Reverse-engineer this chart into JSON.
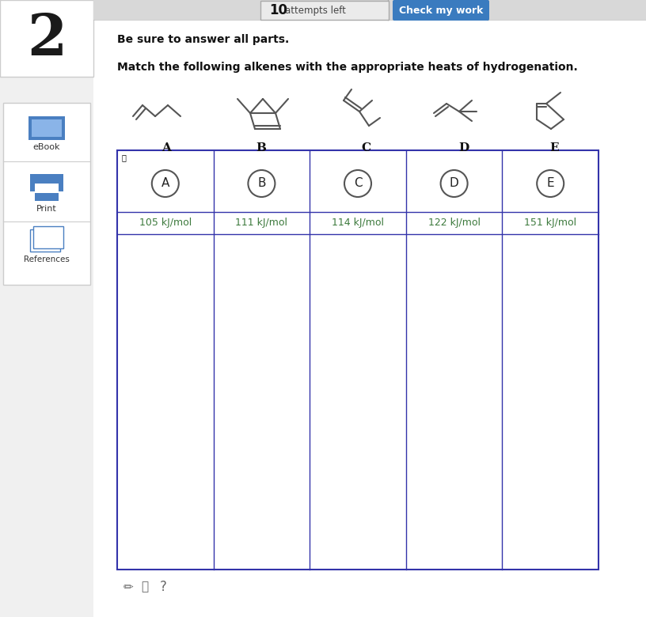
{
  "bg_color": "#f0f0f0",
  "white": "#ffffff",
  "question_number": "2",
  "attempts_text_bold": "10",
  "attempts_text_normal": "attempts left",
  "check_button_text": "Check my work",
  "check_button_color": "#3a7bbf",
  "instruction1": "Be sure to answer all parts.",
  "instruction2": "Match the following alkenes with the appropriate heats of hydrogenation.",
  "labels": [
    "A",
    "B",
    "C",
    "D",
    "E"
  ],
  "heats": [
    "105 kJ/mol",
    "111 kJ/mol",
    "114 kJ/mol",
    "122 kJ/mol",
    "151 kJ/mol"
  ],
  "heat_label_color": "#3d7a3d",
  "grid_border_color": "#3333aa",
  "sidebar_bg": "#f0f0f0",
  "ebook_color": "#4a7fc1",
  "top_bar_color": "#d8d8d8",
  "top_bar_border": "#bbbbbb",
  "num_box_border": "#cccccc"
}
